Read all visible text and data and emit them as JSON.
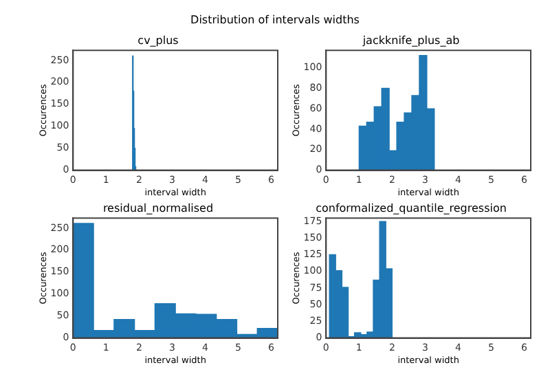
{
  "chart_data": [
    {
      "type": "histogram",
      "annotations": [
        "Distribution of intervals widths"
      ],
      "title": "cv_plus",
      "xlabel": "interval width",
      "ylabel": "Occurences",
      "bins": [
        1.8,
        1.82,
        1.84,
        1.86,
        1.88,
        1.9
      ],
      "values": [
        260,
        180,
        95,
        50,
        8
      ],
      "color": "#1f77b4",
      "xlim": [
        0,
        6.2
      ],
      "xticks": [
        0,
        1,
        2,
        3,
        4,
        5,
        6
      ],
      "ylim": [
        0,
        273
      ],
      "yticks": [
        0,
        50,
        100,
        150,
        200,
        250
      ],
      "grid": false,
      "legend": false
    },
    {
      "type": "histogram",
      "title": "jackknife_plus_ab",
      "xlabel": "interval width",
      "ylabel": "Occurences",
      "bins": [
        1.0,
        1.228,
        1.456,
        1.684,
        1.912,
        2.14,
        2.368,
        2.596,
        2.824,
        3.052,
        3.28
      ],
      "values": [
        43,
        47,
        62,
        80,
        19,
        47,
        56,
        73,
        112,
        60
      ],
      "color": "#1f77b4",
      "xlim": [
        0,
        6.2
      ],
      "xticks": [
        0,
        1,
        2,
        3,
        4,
        5,
        6
      ],
      "ylim": [
        0,
        117
      ],
      "yticks": [
        0,
        20,
        40,
        60,
        80,
        100
      ],
      "grid": false,
      "legend": false
    },
    {
      "type": "histogram",
      "title": "residual_normalised",
      "xlabel": "interval width",
      "ylabel": "Occurences",
      "bins": [
        0,
        0.62,
        1.24,
        1.86,
        2.48,
        3.1,
        3.72,
        4.34,
        4.96,
        5.58,
        6.2
      ],
      "values": [
        261,
        17,
        42,
        17,
        78,
        55,
        54,
        42,
        8,
        22
      ],
      "color": "#1f77b4",
      "xlim": [
        0,
        6.2
      ],
      "xticks": [
        0,
        1,
        2,
        3,
        4,
        5,
        6
      ],
      "ylim": [
        0,
        273
      ],
      "yticks": [
        0,
        50,
        100,
        150,
        200,
        250
      ],
      "grid": false,
      "legend": false
    },
    {
      "type": "histogram",
      "title": "conformalized_quantile_regression",
      "xlabel": "interval width",
      "ylabel": "Occurences",
      "bins": [
        0.1,
        0.29,
        0.48,
        0.67,
        0.86,
        1.05,
        1.24,
        1.43,
        1.62,
        1.81,
        2.0
      ],
      "values": [
        125,
        101,
        76,
        2,
        8,
        5,
        9,
        87,
        175,
        104
      ],
      "color": "#1f77b4",
      "xlim": [
        0,
        6.2
      ],
      "xticks": [
        0,
        1,
        2,
        3,
        4,
        5,
        6
      ],
      "ylim": [
        0,
        180
      ],
      "yticks": [
        0,
        25,
        50,
        75,
        100,
        125,
        150,
        175
      ],
      "grid": false,
      "legend": false
    }
  ]
}
